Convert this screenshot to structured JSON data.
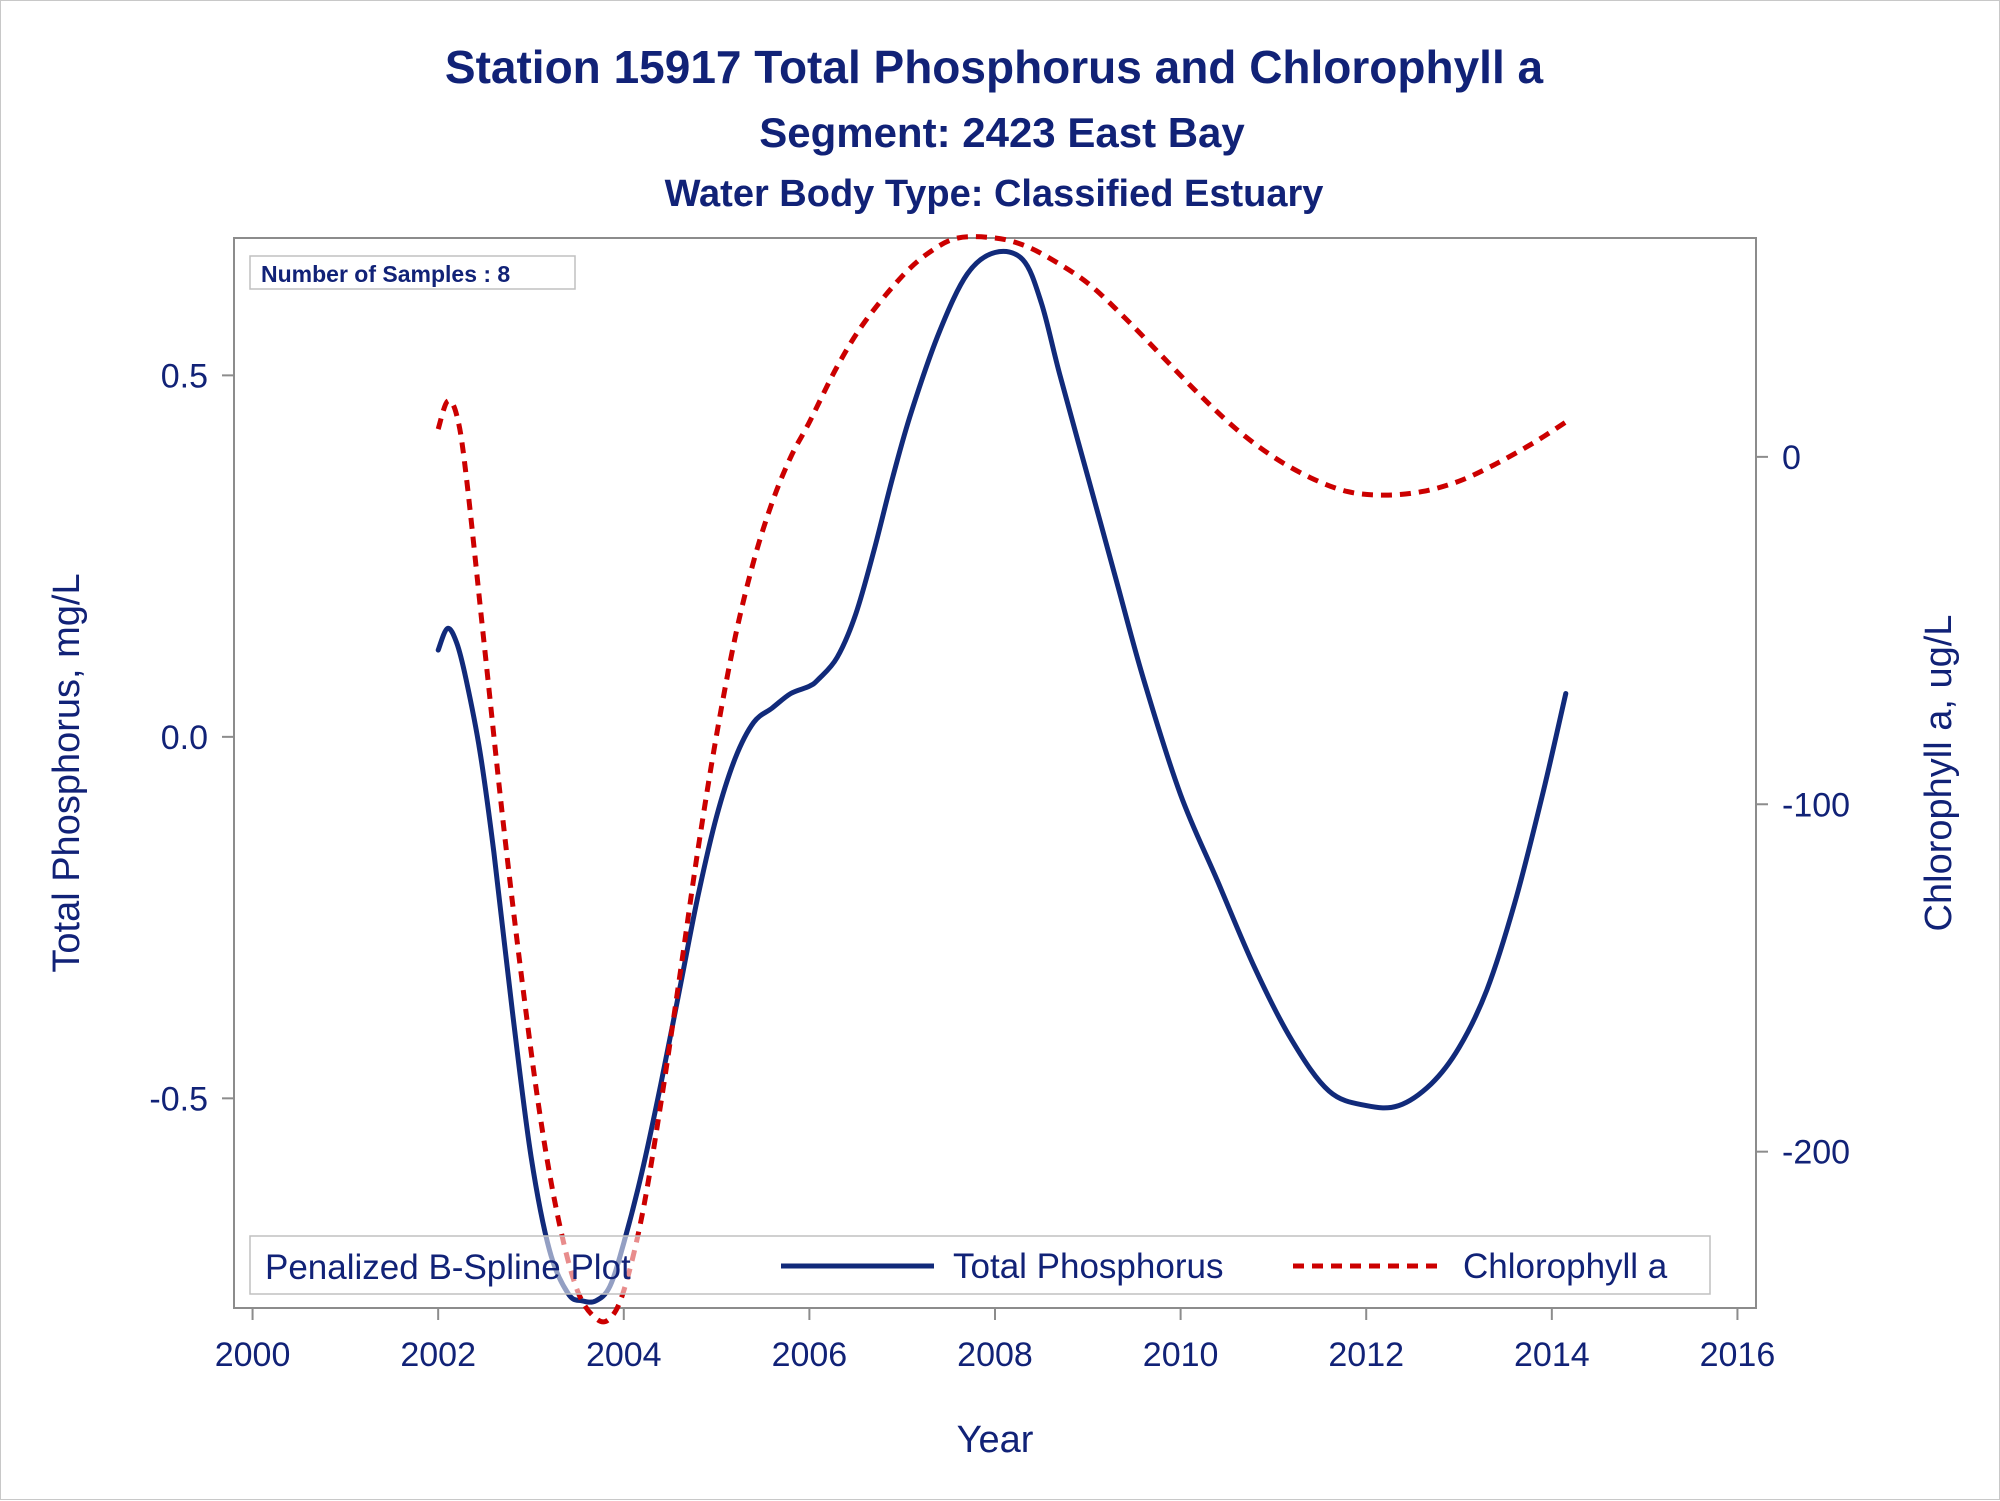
{
  "titles": {
    "line1": "Station 15917  Total Phosphorus and Chlorophyll a",
    "line2": "Segment: 2423  East Bay",
    "line3": "Water Body Type: Classified Estuary"
  },
  "inset": {
    "samples_label": "Number of Samples : 8"
  },
  "legend": {
    "title": "Penalized B-Spline Plot",
    "items": [
      "Total Phosphorus",
      "Chlorophyll a"
    ]
  },
  "colors": {
    "phosphorus": "#112a7a",
    "chlorophyll": "#cc0000",
    "text": "#112277",
    "axis": "#8c8c8c"
  },
  "chart_data": {
    "type": "line",
    "title": "Station 15917  Total Phosphorus and Chlorophyll a",
    "xlabel": "Year",
    "ylabel": "Total Phosphorus, mg/L",
    "y2label": "Chlorophyll a, ug/L",
    "xlim": [
      1999.8,
      2016.2
    ],
    "ylim": [
      -0.79,
      0.69
    ],
    "y2lim": [
      -245,
      63
    ],
    "xticks": [
      2000,
      2002,
      2004,
      2006,
      2008,
      2010,
      2012,
      2014,
      2016
    ],
    "xtick_labels": [
      "2000",
      "2002",
      "2004",
      "2006",
      "2008",
      "2010",
      "2012",
      "2014",
      "2016"
    ],
    "yticks": [
      0.5,
      0.0,
      -0.5
    ],
    "ytick_labels": [
      "0.5",
      "0.0",
      "-0.5"
    ],
    "y2ticks": [
      0,
      -100,
      -200
    ],
    "y2tick_labels": [
      "0",
      "-100",
      "-200"
    ],
    "grid": false,
    "legend_position": "bottom-inside",
    "series": [
      {
        "name": "Total Phosphorus",
        "axis": "left",
        "style": "solid",
        "x": [
          2002.0,
          2002.1,
          2002.2,
          2002.3,
          2002.45,
          2002.6,
          2002.8,
          2003.0,
          2003.2,
          2003.4,
          2003.55,
          2003.7,
          2003.85,
          2004.0,
          2004.2,
          2004.4,
          2004.6,
          2004.8,
          2005.0,
          2005.2,
          2005.4,
          2005.6,
          2005.8,
          2006.0,
          2006.1,
          2006.3,
          2006.5,
          2006.7,
          2006.9,
          2007.1,
          2007.4,
          2007.7,
          2008.0,
          2008.3,
          2008.5,
          2008.7,
          2009.0,
          2009.3,
          2009.6,
          2010.0,
          2010.4,
          2010.8,
          2011.2,
          2011.6,
          2012.0,
          2012.35,
          2012.7,
          2013.0,
          2013.3,
          2013.6,
          2013.9,
          2014.15
        ],
        "y": [
          0.12,
          0.15,
          0.13,
          0.08,
          -0.02,
          -0.16,
          -0.38,
          -0.58,
          -0.71,
          -0.77,
          -0.78,
          -0.78,
          -0.76,
          -0.7,
          -0.6,
          -0.48,
          -0.35,
          -0.22,
          -0.11,
          -0.03,
          0.02,
          0.04,
          0.06,
          0.07,
          0.08,
          0.11,
          0.17,
          0.26,
          0.36,
          0.45,
          0.56,
          0.64,
          0.67,
          0.66,
          0.6,
          0.5,
          0.36,
          0.22,
          0.08,
          -0.08,
          -0.2,
          -0.32,
          -0.42,
          -0.49,
          -0.51,
          -0.51,
          -0.48,
          -0.43,
          -0.35,
          -0.23,
          -0.08,
          0.06
        ]
      },
      {
        "name": "Chlorophyll a",
        "axis": "right",
        "style": "dashed",
        "x": [
          2002.0,
          2002.1,
          2002.2,
          2002.3,
          2002.5,
          2002.7,
          2002.9,
          2003.1,
          2003.3,
          2003.5,
          2003.7,
          2003.85,
          2004.0,
          2004.2,
          2004.4,
          2004.6,
          2004.8,
          2005.0,
          2005.2,
          2005.4,
          2005.6,
          2005.8,
          2006.0,
          2006.3,
          2006.6,
          2007.0,
          2007.3,
          2007.6,
          2008.0,
          2008.3,
          2008.6,
          2009.0,
          2009.4,
          2009.8,
          2010.2,
          2010.6,
          2011.0,
          2011.4,
          2011.8,
          2012.2,
          2012.6,
          2013.0,
          2013.4,
          2013.8,
          2014.15
        ],
        "y": [
          8,
          16,
          12,
          -5,
          -55,
          -105,
          -150,
          -190,
          -220,
          -240,
          -248,
          -248,
          -240,
          -218,
          -186,
          -150,
          -113,
          -80,
          -52,
          -30,
          -13,
          0,
          10,
          26,
          39,
          52,
          59,
          63,
          63,
          61,
          57,
          50,
          40,
          29,
          18,
          8,
          0,
          -6,
          -10,
          -11,
          -10,
          -7,
          -2,
          4,
          10
        ]
      }
    ]
  }
}
